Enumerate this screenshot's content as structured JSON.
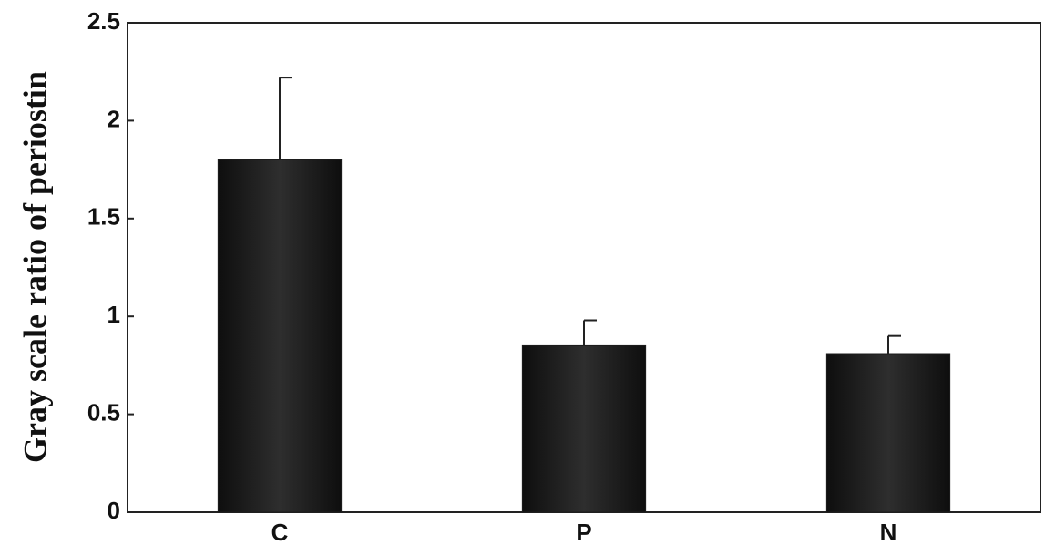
{
  "chart_data": {
    "type": "bar",
    "y_label": "Gray scale ratio of periostin",
    "categories": [
      "C",
      "P",
      "N"
    ],
    "values": [
      1.8,
      0.85,
      0.81
    ],
    "errors": [
      0.42,
      0.13,
      0.09
    ],
    "color": "#1c1c1c",
    "ylim": [
      0,
      2.5
    ],
    "yticks": [
      0,
      0.5,
      1,
      1.5,
      2,
      2.5
    ],
    "grid": false
  }
}
